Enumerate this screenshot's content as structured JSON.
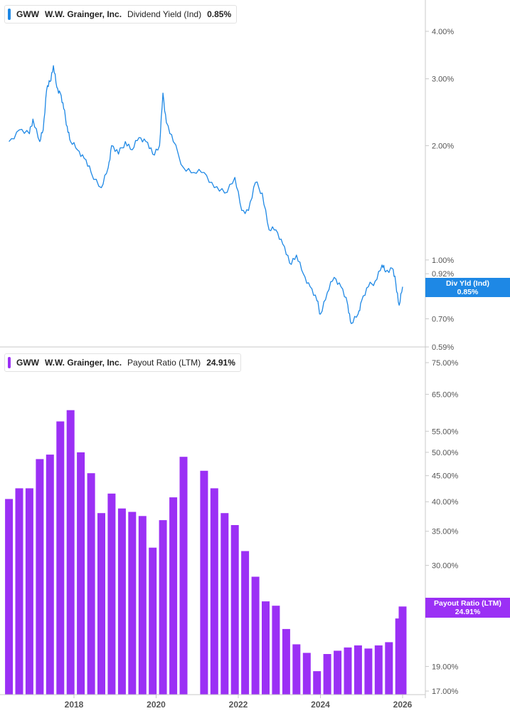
{
  "top_panel": {
    "ticker": "GWW",
    "company": "W.W. Grainger, Inc.",
    "metric": "Dividend Yield (Ind)",
    "value": "0.85%",
    "color": "#1e88e5",
    "tag_label": "Div Yld (Ind)",
    "tag_value": "0.85%"
  },
  "bottom_panel": {
    "ticker": "GWW",
    "company": "W.W. Grainger, Inc.",
    "metric": "Payout Ratio (LTM)",
    "value": "24.91%",
    "color": "#9b30f5",
    "tag_label": "Payout Ratio (LTM)",
    "tag_value": "24.91%"
  },
  "chart_data": [
    {
      "type": "line",
      "scale": "log",
      "series": [
        {
          "name": "Dividend Yield (Ind)",
          "points": [
            [
              "2016-06",
              2.05
            ],
            [
              "2016-09",
              2.2
            ],
            [
              "2016-12",
              2.15
            ],
            [
              "2017-01",
              2.35
            ],
            [
              "2017-03",
              2.05
            ],
            [
              "2017-04",
              2.2
            ],
            [
              "2017-05",
              2.8
            ],
            [
              "2017-06",
              2.95
            ],
            [
              "2017-07",
              3.25
            ],
            [
              "2017-08",
              2.85
            ],
            [
              "2017-09",
              2.75
            ],
            [
              "2017-10",
              2.5
            ],
            [
              "2017-11",
              2.25
            ],
            [
              "2017-12",
              2.05
            ],
            [
              "2018-02",
              1.95
            ],
            [
              "2018-04",
              1.85
            ],
            [
              "2018-06",
              1.7
            ],
            [
              "2018-09",
              1.55
            ],
            [
              "2018-11",
              1.75
            ],
            [
              "2018-12",
              2.0
            ],
            [
              "2019-02",
              1.9
            ],
            [
              "2019-04",
              2.05
            ],
            [
              "2019-06",
              1.95
            ],
            [
              "2019-08",
              2.1
            ],
            [
              "2019-10",
              2.05
            ],
            [
              "2019-12",
              1.9
            ],
            [
              "2020-02",
              2.0
            ],
            [
              "2020-03",
              2.75
            ],
            [
              "2020-04",
              2.3
            ],
            [
              "2020-06",
              2.05
            ],
            [
              "2020-09",
              1.75
            ],
            [
              "2020-12",
              1.7
            ],
            [
              "2021-03",
              1.7
            ],
            [
              "2021-06",
              1.55
            ],
            [
              "2021-09",
              1.5
            ],
            [
              "2021-12",
              1.65
            ],
            [
              "2022-02",
              1.35
            ],
            [
              "2022-04",
              1.35
            ],
            [
              "2022-06",
              1.6
            ],
            [
              "2022-08",
              1.5
            ],
            [
              "2022-10",
              1.2
            ],
            [
              "2022-12",
              1.2
            ],
            [
              "2023-02",
              1.1
            ],
            [
              "2023-04",
              0.98
            ],
            [
              "2023-06",
              1.03
            ],
            [
              "2023-08",
              0.92
            ],
            [
              "2023-10",
              0.85
            ],
            [
              "2023-12",
              0.78
            ],
            [
              "2024-01",
              0.72
            ],
            [
              "2024-03",
              0.82
            ],
            [
              "2024-05",
              0.9
            ],
            [
              "2024-07",
              0.85
            ],
            [
              "2024-09",
              0.76
            ],
            [
              "2024-10",
              0.68
            ],
            [
              "2024-12",
              0.72
            ],
            [
              "2025-01",
              0.78
            ],
            [
              "2025-03",
              0.85
            ],
            [
              "2025-05",
              0.88
            ],
            [
              "2025-07",
              0.97
            ],
            [
              "2025-08",
              0.93
            ],
            [
              "2025-10",
              0.95
            ],
            [
              "2025-11",
              0.87
            ],
            [
              "2025-12",
              0.76
            ],
            [
              "2026-01",
              0.85
            ]
          ]
        }
      ],
      "y_ticks": [
        "4.00%",
        "3.00%",
        "2.00%",
        "1.00%",
        "0.92%",
        "0.70%",
        "0.59%"
      ],
      "y_tick_values": [
        4.0,
        3.0,
        2.0,
        1.0,
        0.92,
        0.7,
        0.59
      ],
      "ylim": [
        0.59,
        4.6
      ]
    },
    {
      "type": "bar",
      "scale": "log",
      "series": [
        {
          "name": "Payout Ratio (LTM)",
          "points": [
            [
              "2016-06",
              40.5
            ],
            [
              "2016-09",
              42.5
            ],
            [
              "2016-12",
              42.5
            ],
            [
              "2017-03",
              48.5
            ],
            [
              "2017-06",
              49.5
            ],
            [
              "2017-09",
              57.5
            ],
            [
              "2017-12",
              60.5
            ],
            [
              "2018-03",
              50.0
            ],
            [
              "2018-06",
              45.5
            ],
            [
              "2018-09",
              38.0
            ],
            [
              "2018-12",
              41.5
            ],
            [
              "2019-03",
              38.8
            ],
            [
              "2019-06",
              38.2
            ],
            [
              "2019-09",
              37.5
            ],
            [
              "2019-12",
              32.5
            ],
            [
              "2020-03",
              36.8
            ],
            [
              "2020-06",
              40.8
            ],
            [
              "2020-09",
              49.0
            ],
            [
              "2021-03",
              46.0
            ],
            [
              "2021-06",
              42.5
            ],
            [
              "2021-09",
              38.0
            ],
            [
              "2021-12",
              36.0
            ],
            [
              "2022-03",
              32.0
            ],
            [
              "2022-06",
              28.5
            ],
            [
              "2022-09",
              25.5
            ],
            [
              "2022-12",
              25.0
            ],
            [
              "2023-03",
              22.5
            ],
            [
              "2023-06",
              21.0
            ],
            [
              "2023-09",
              20.2
            ],
            [
              "2023-12",
              18.6
            ],
            [
              "2024-03",
              20.1
            ],
            [
              "2024-06",
              20.4
            ],
            [
              "2024-09",
              20.7
            ],
            [
              "2024-12",
              20.9
            ],
            [
              "2025-03",
              20.6
            ],
            [
              "2025-06",
              20.9
            ],
            [
              "2025-09",
              21.2
            ],
            [
              "2025-12",
              23.6
            ],
            [
              "2026-01",
              24.91
            ]
          ]
        }
      ],
      "y_ticks": [
        "75.00%",
        "65.00%",
        "55.00%",
        "50.00%",
        "45.00%",
        "40.00%",
        "35.00%",
        "30.00%",
        "19.00%",
        "17.00%"
      ],
      "y_tick_values": [
        75,
        65,
        55,
        50,
        45,
        40,
        35,
        30,
        19,
        17
      ],
      "ylim": [
        17,
        75
      ]
    }
  ],
  "x_axis": {
    "ticks": [
      "2018",
      "2020",
      "2022",
      "2024",
      "2026"
    ],
    "tick_values": [
      "2018-01",
      "2020-01",
      "2022-01",
      "2024-01",
      "2026-01"
    ]
  }
}
